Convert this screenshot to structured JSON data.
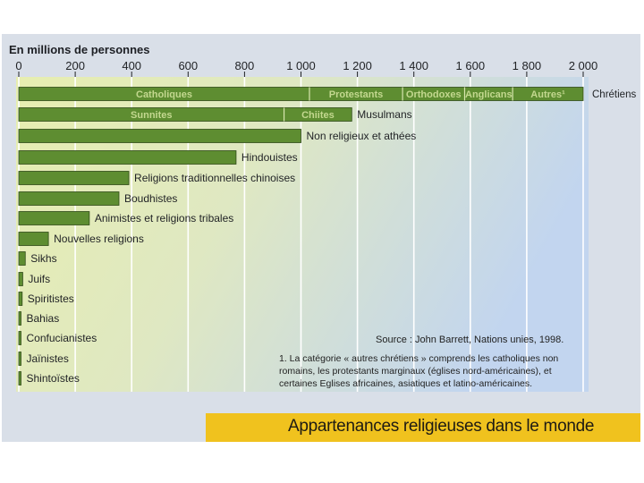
{
  "caption": "Appartenances religieuses dans le monde",
  "source": "Source : John Barrett, Nations unies, 1998.",
  "footnote": "1. La catégorie « autres chrétiens » comprends les catholiques non romains, les protestants marginaux (églises nord-américaines), et certaines Eglises africaines, asiatiques et latino-américaines.",
  "colors": {
    "bar": "#5e8d31",
    "bar_stroke": "#2f4a18",
    "plot_bg_left": "#e9efb4",
    "plot_bg_right": "#c4d6ee",
    "grid": "#ffffff",
    "text": "#1f2124"
  },
  "chart_data": {
    "type": "bar",
    "orientation": "horizontal",
    "title": "",
    "xlabel": "En millions de personnes",
    "xlim": [
      0,
      2000
    ],
    "xticks": [
      "0",
      "200",
      "400",
      "600",
      "800",
      "1 000",
      "1 200",
      "1 400",
      "1 600",
      "1 800",
      "2 000"
    ],
    "tick_values": [
      0,
      200,
      400,
      600,
      800,
      1000,
      1200,
      1400,
      1600,
      1800,
      2000
    ],
    "categories": [
      "Chrétiens",
      "Musulmans",
      "Non religieux et athées",
      "Hindouistes",
      "Religions traditionnelles chinoises",
      "Boudhistes",
      "Animistes et religions tribales",
      "Nouvelles religions",
      "Sikhs",
      "Juifs",
      "Spiritistes",
      "Bahias",
      "Confucianistes",
      "Jaïnistes",
      "Shintoïstes"
    ],
    "values": [
      2000,
      1180,
      1000,
      770,
      390,
      355,
      250,
      105,
      23,
      14,
      12,
      7,
      6,
      4,
      3
    ],
    "segments": [
      [
        {
          "label": "Catholiques",
          "value": 1030
        },
        {
          "label": "Protestants",
          "value": 330
        },
        {
          "label": "Orthodoxes",
          "value": 220
        },
        {
          "label": "Anglicans",
          "value": 170
        },
        {
          "label": "Autres¹",
          "value": 250
        }
      ],
      [
        {
          "label": "Sunnites",
          "value": 940
        },
        {
          "label": "Chiites",
          "value": 240
        }
      ]
    ]
  }
}
